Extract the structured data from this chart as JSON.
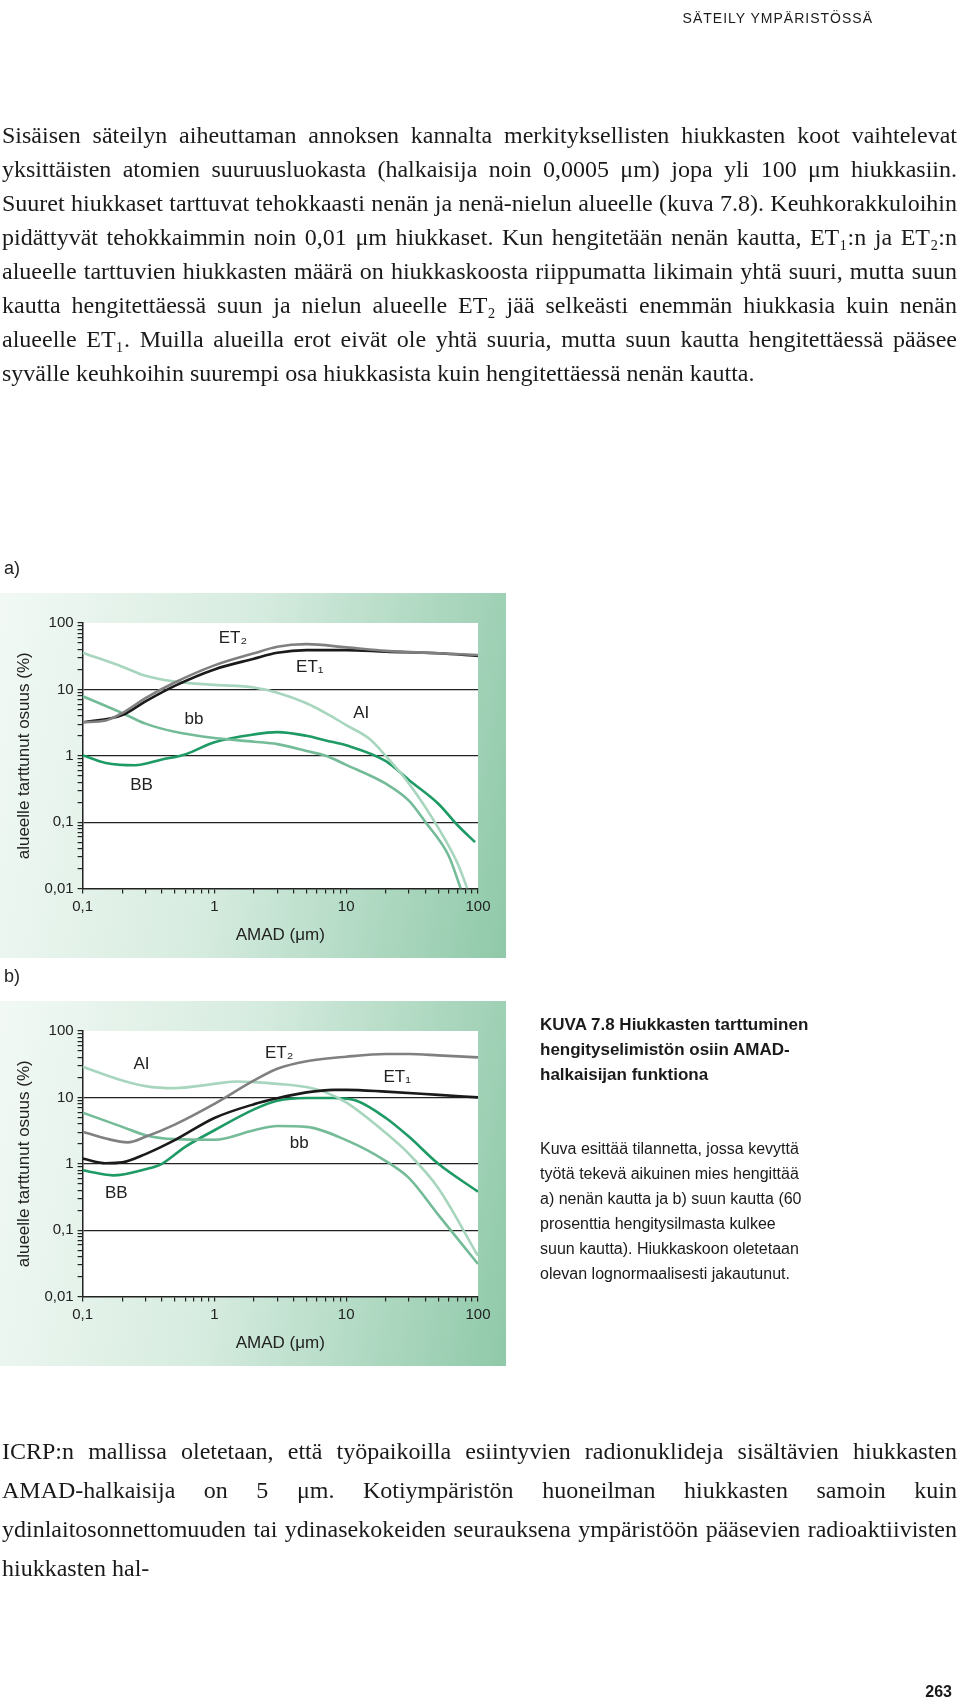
{
  "chart_data": [
    {
      "type": "line",
      "title": "a)",
      "xlabel": "AMAD (μm)",
      "ylabel": "alueelle tarttunut osuus (%)",
      "log": "xy",
      "grid": "y",
      "xlim": [
        0.1,
        100
      ],
      "ylim": [
        0.01,
        100
      ],
      "xticks": [
        {
          "value": 0.1,
          "label": "0,1"
        },
        {
          "value": 0.2,
          "label": null
        },
        {
          "value": 0.3,
          "label": null
        },
        {
          "value": 0.4,
          "label": null
        },
        {
          "value": 0.5,
          "label": null
        },
        {
          "value": 0.6,
          "label": null
        },
        {
          "value": 0.7,
          "label": null
        },
        {
          "value": 0.8,
          "label": null
        },
        {
          "value": 0.9,
          "label": null
        },
        1,
        {
          "value": 2,
          "label": null
        },
        {
          "value": 3,
          "label": null
        },
        {
          "value": 4,
          "label": null
        },
        {
          "value": 5,
          "label": null
        },
        {
          "value": 6,
          "label": null
        },
        {
          "value": 7,
          "label": null
        },
        {
          "value": 8,
          "label": null
        },
        {
          "value": 9,
          "label": null
        },
        10,
        {
          "value": 20,
          "label": null
        },
        {
          "value": 30,
          "label": null
        },
        {
          "value": 40,
          "label": null
        },
        {
          "value": 50,
          "label": null
        },
        {
          "value": 60,
          "label": null
        },
        {
          "value": 70,
          "label": null
        },
        {
          "value": 80,
          "label": null
        },
        {
          "value": 90,
          "label": null
        },
        100
      ],
      "yticks": [
        {
          "value": 0.01,
          "label": "0,01"
        },
        {
          "value": 0.02,
          "label": null
        },
        {
          "value": 0.03,
          "label": null
        },
        {
          "value": 0.04,
          "label": null
        },
        {
          "value": 0.05,
          "label": null
        },
        {
          "value": 0.06,
          "label": null
        },
        {
          "value": 0.07,
          "label": null
        },
        {
          "value": 0.08,
          "label": null
        },
        {
          "value": 0.09,
          "label": null
        },
        {
          "value": 0.1,
          "label": "0,1"
        },
        {
          "value": 0.2,
          "label": null
        },
        {
          "value": 0.3,
          "label": null
        },
        {
          "value": 0.4,
          "label": null
        },
        {
          "value": 0.5,
          "label": null
        },
        {
          "value": 0.6,
          "label": null
        },
        {
          "value": 0.7,
          "label": null
        },
        {
          "value": 0.8,
          "label": null
        },
        {
          "value": 0.9,
          "label": null
        },
        1,
        {
          "value": 2,
          "label": null
        },
        {
          "value": 3,
          "label": null
        },
        {
          "value": 4,
          "label": null
        },
        {
          "value": 5,
          "label": null
        },
        {
          "value": 6,
          "label": null
        },
        {
          "value": 7,
          "label": null
        },
        {
          "value": 8,
          "label": null
        },
        {
          "value": 9,
          "label": null
        },
        10,
        {
          "value": 20,
          "label": null
        },
        {
          "value": 30,
          "label": null
        },
        {
          "value": 40,
          "label": null
        },
        {
          "value": 50,
          "label": null
        },
        {
          "value": 60,
          "label": null
        },
        {
          "value": 70,
          "label": null
        },
        {
          "value": 80,
          "label": null
        },
        {
          "value": 90,
          "label": null
        },
        100
      ],
      "series": [
        {
          "name": "ET₂",
          "color": "#808080",
          "x": [
            0.1,
            0.15,
            0.2,
            0.3,
            0.5,
            1,
            2,
            3,
            5,
            10,
            20,
            50,
            100
          ],
          "values": [
            3.2,
            3.4,
            4.4,
            7.4,
            12.7,
            23,
            35,
            44,
            48,
            43,
            38,
            35,
            33
          ]
        },
        {
          "name": "ET₁",
          "color": "#1a1a1a",
          "x": [
            0.1,
            0.2,
            0.3,
            0.5,
            1,
            2,
            3,
            5,
            10,
            20,
            50,
            100
          ],
          "values": [
            3.2,
            4.1,
            6.6,
            11.3,
            20,
            29,
            35.6,
            39,
            39,
            37,
            35,
            32
          ]
        },
        {
          "name": "AI",
          "color": "#a8d5bd",
          "x": [
            0.1,
            0.2,
            0.3,
            0.5,
            1,
            2,
            3,
            5,
            7,
            10,
            15,
            20,
            30,
            50,
            70,
            83
          ],
          "values": [
            35.6,
            22,
            16,
            13.1,
            11.7,
            10.7,
            8.9,
            6.2,
            4.4,
            2.9,
            1.8,
            0.99,
            0.38,
            0.082,
            0.024,
            0.01
          ]
        },
        {
          "name": "bb",
          "color": "#74bb98",
          "x": [
            0.1,
            0.2,
            0.3,
            0.5,
            1,
            2,
            3,
            5,
            7,
            10,
            20,
            30,
            40,
            60,
            74
          ],
          "values": [
            7.9,
            4.4,
            3.05,
            2.3,
            1.85,
            1.63,
            1.5,
            1.18,
            1.0,
            0.73,
            0.38,
            0.21,
            0.1,
            0.031,
            0.01
          ]
        },
        {
          "name": "BB",
          "color": "#1e9a64",
          "x": [
            0.1,
            0.15,
            0.25,
            0.4,
            0.6,
            1,
            2,
            3,
            5,
            7,
            10,
            20,
            30,
            50,
            70,
            95
          ],
          "values": [
            1.02,
            0.78,
            0.72,
            0.88,
            1.05,
            1.6,
            2.1,
            2.27,
            2.0,
            1.7,
            1.44,
            0.83,
            0.43,
            0.19,
            0.09,
            0.05
          ]
        }
      ],
      "annotations": [
        "SÄTEILY YMPÄRISTÖSSÄ",
        "Sisäisen säteilyn aiheuttaman annoksen kannalta merkityksellisten hiukkasten koot vaihtelevat yksittäisten atomien suuruusluokasta (halkaisija noin 0,0005 μm) jopa yli 100 μm hiukkasiin. Suuret hiukkaset tarttuvat tehokkaasti nenän ja nenä-nielun alueelle (kuva 7.8). Keuhkorakkuloihin pidättyvät tehokkaimmin noin 0,01 μm hiukkaset. Kun hengitetään nenän kautta, ET₁:n ja ET₂:n alueelle tarttuvien hiukkasten määrä on hiukkaskoosta riippumatta likimain yhtä suuri, mutta suun kautta hengitettäessä suun ja nielun alueelle ET₂ jää selkeästi enemmän hiukkasia kuin nenän alueelle ET₁. Muilla alueilla erot eivät ole yhtä suuria, mutta suun kautta hengitettäessä pääsee syvälle keuhkoihin suurempi osa hiukkasista kuin hengitettäessä nenän kautta."
      ]
    },
    {
      "type": "line",
      "title": "b)",
      "xlabel": "AMAD (μm)",
      "ylabel": "alueelle tarttunut osuus (%)",
      "log": "xy",
      "grid": "y",
      "xlim": [
        0.1,
        100
      ],
      "ylim": [
        0.01,
        100
      ],
      "xticks": [
        {
          "value": 0.1,
          "label": "0,1"
        },
        {
          "value": 0.2,
          "label": null
        },
        {
          "value": 0.3,
          "label": null
        },
        {
          "value": 0.4,
          "label": null
        },
        {
          "value": 0.5,
          "label": null
        },
        {
          "value": 0.6,
          "label": null
        },
        {
          "value": 0.7,
          "label": null
        },
        {
          "value": 0.8,
          "label": null
        },
        {
          "value": 0.9,
          "label": null
        },
        1,
        {
          "value": 2,
          "label": null
        },
        {
          "value": 3,
          "label": null
        },
        {
          "value": 4,
          "label": null
        },
        {
          "value": 5,
          "label": null
        },
        {
          "value": 6,
          "label": null
        },
        {
          "value": 7,
          "label": null
        },
        {
          "value": 8,
          "label": null
        },
        {
          "value": 9,
          "label": null
        },
        10,
        {
          "value": 20,
          "label": null
        },
        {
          "value": 30,
          "label": null
        },
        {
          "value": 40,
          "label": null
        },
        {
          "value": 50,
          "label": null
        },
        {
          "value": 60,
          "label": null
        },
        {
          "value": 70,
          "label": null
        },
        {
          "value": 80,
          "label": null
        },
        {
          "value": 90,
          "label": null
        },
        100
      ],
      "yticks": [
        {
          "value": 0.01,
          "label": "0,01"
        },
        {
          "value": 0.02,
          "label": null
        },
        {
          "value": 0.03,
          "label": null
        },
        {
          "value": 0.04,
          "label": null
        },
        {
          "value": 0.05,
          "label": null
        },
        {
          "value": 0.06,
          "label": null
        },
        {
          "value": 0.07,
          "label": null
        },
        {
          "value": 0.08,
          "label": null
        },
        {
          "value": 0.09,
          "label": null
        },
        {
          "value": 0.1,
          "label": "0,1"
        },
        {
          "value": 0.2,
          "label": null
        },
        {
          "value": 0.3,
          "label": null
        },
        {
          "value": 0.4,
          "label": null
        },
        {
          "value": 0.5,
          "label": null
        },
        {
          "value": 0.6,
          "label": null
        },
        {
          "value": 0.7,
          "label": null
        },
        {
          "value": 0.8,
          "label": null
        },
        {
          "value": 0.9,
          "label": null
        },
        1,
        {
          "value": 2,
          "label": null
        },
        {
          "value": 3,
          "label": null
        },
        {
          "value": 4,
          "label": null
        },
        {
          "value": 5,
          "label": null
        },
        {
          "value": 6,
          "label": null
        },
        {
          "value": 7,
          "label": null
        },
        {
          "value": 8,
          "label": null
        },
        {
          "value": 9,
          "label": null
        },
        10,
        {
          "value": 20,
          "label": null
        },
        {
          "value": 30,
          "label": null
        },
        {
          "value": 40,
          "label": null
        },
        {
          "value": 50,
          "label": null
        },
        {
          "value": 60,
          "label": null
        },
        {
          "value": 70,
          "label": null
        },
        {
          "value": 80,
          "label": null
        },
        {
          "value": 90,
          "label": null
        },
        100
      ],
      "series": [
        {
          "name": "ET₂",
          "color": "#808080",
          "x": [
            0.1,
            0.15,
            0.22,
            0.3,
            0.5,
            1,
            2,
            3,
            5,
            10,
            20,
            30,
            50,
            100
          ],
          "values": [
            3.05,
            2.4,
            2.1,
            2.55,
            3.9,
            8,
            18,
            27,
            35,
            41,
            45,
            45,
            43,
            40
          ]
        },
        {
          "name": "ET₁",
          "color": "#1a1a1a",
          "x": [
            0.1,
            0.15,
            0.2,
            0.3,
            0.5,
            1,
            2,
            3,
            5,
            8,
            10,
            20,
            50,
            100
          ],
          "values": [
            1.2,
            1.02,
            1.05,
            1.4,
            2.27,
            4.9,
            7.9,
            9.7,
            11.9,
            13,
            13,
            12.2,
            10.9,
            10
          ]
        },
        {
          "name": "AI",
          "color": "#a8d5bd",
          "x": [
            0.1,
            0.2,
            0.3,
            0.5,
            1,
            1.5,
            2,
            3,
            5,
            7,
            10,
            20,
            30,
            50,
            100
          ],
          "values": [
            29,
            18,
            14.8,
            13.8,
            16,
            17.4,
            17,
            16,
            14.3,
            11.9,
            8.4,
            2.9,
            1.4,
            0.43,
            0.041
          ]
        },
        {
          "name": "bb",
          "color": "#74bb98",
          "x": [
            0.1,
            0.2,
            0.3,
            0.5,
            1,
            2,
            3,
            5,
            10,
            20,
            30,
            50,
            100
          ],
          "values": [
            5.9,
            3.6,
            2.7,
            2.35,
            2.3,
            3.2,
            3.7,
            3.6,
            2.27,
            1.1,
            0.61,
            0.17,
            0.031
          ]
        },
        {
          "name": "BB",
          "color": "#1e9a64",
          "x": [
            0.1,
            0.17,
            0.3,
            0.4,
            0.6,
            1,
            2,
            3,
            5,
            8,
            12,
            20,
            30,
            50,
            100
          ],
          "values": [
            0.8,
            0.67,
            0.83,
            1.0,
            1.8,
            3.2,
            6.6,
            8.9,
            9.8,
            9.8,
            8.9,
            4.9,
            2.55,
            1.0,
            0.38
          ]
        }
      ],
      "annotations": [
        "KUVA 7.8 Hiukkasten tarttuminen hengityselimistön osiin AMAD-halkaisijan funktiona",
        "Kuva esittää tilannetta, jossa kevyttä työtä tekevä aikuinen mies hengittää a) nenän kautta ja b) suun kautta (60 prosenttia hengitysilmasta kulkee suun kautta). Hiukkaskoon oletetaan olevan lognormaalisesti jakautunut.",
        "ICRP:n mallissa oletetaan, että työpaikoilla esiintyvien radionuklideja sisältävien hiukkasten AMAD-halkaisija on 5 μm. Kotiympäristön huoneilman hiukkasten samoin kuin ydinlaitosonnettomuuden tai ydinasekokeiden seurauksena ympäristöön pääsevien radioaktiivisten hiukkasten hal-",
        "263"
      ]
    }
  ]
}
